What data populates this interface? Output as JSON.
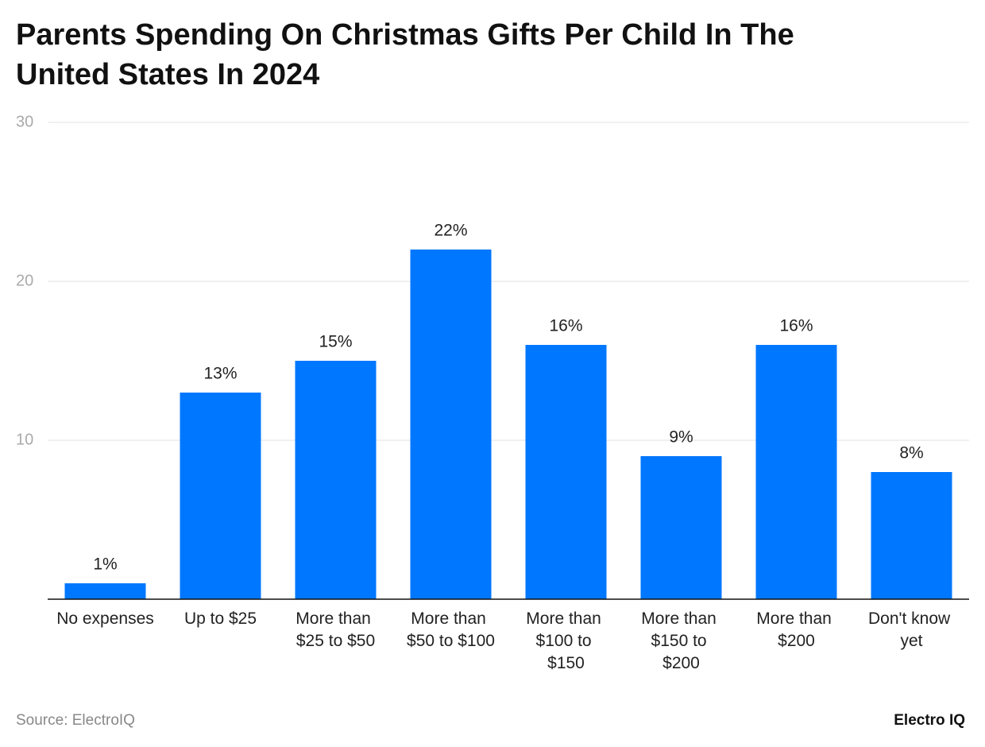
{
  "chart_data": {
    "type": "bar",
    "title": "Parents Spending On Christmas Gifts Per Child In The United States In 2024",
    "categories": [
      "No expenses",
      "Up to $25",
      "More than $25 to $50",
      "More than $50 to $100",
      "More than $100 to $150",
      "More than $150 to $200",
      "More than $200",
      "Don't know yet"
    ],
    "values": [
      1,
      13,
      15,
      22,
      16,
      9,
      16,
      8
    ],
    "value_labels": [
      "1%",
      "13%",
      "15%",
      "22%",
      "16%",
      "9%",
      "16%",
      "8%"
    ],
    "color": "#0077ff",
    "ylim": [
      0,
      30
    ],
    "yticks": [
      10,
      20,
      30
    ],
    "grid": true,
    "source": "Source: ElectroIQ",
    "brand": "Electro IQ"
  }
}
